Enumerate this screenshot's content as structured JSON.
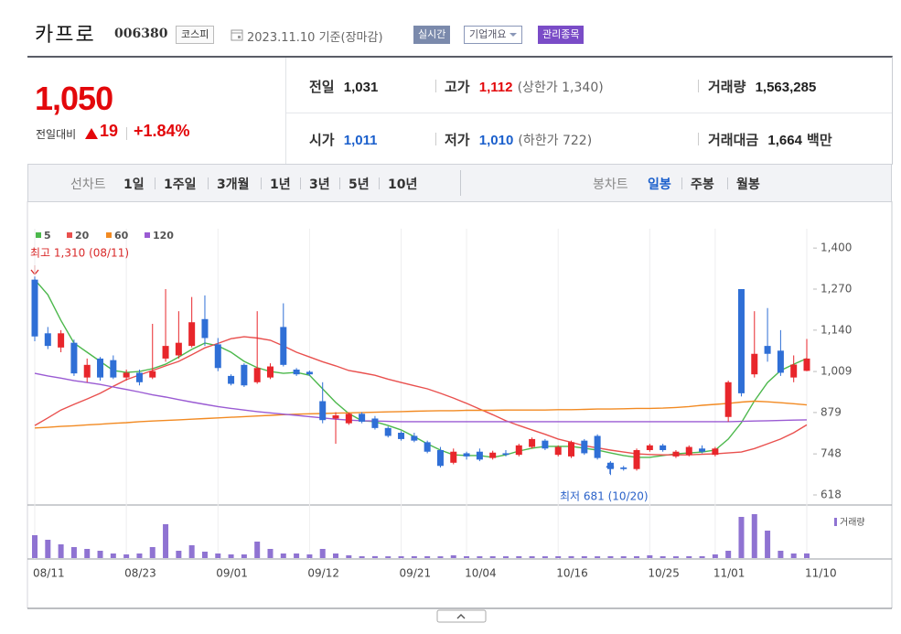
{
  "header": {
    "name": "카프로",
    "code": "006380",
    "market": "코스피",
    "date": "2023.11.10",
    "basis": "기준(장마감)",
    "buttons": [
      "실시간",
      "기업개요",
      "관리종목"
    ]
  },
  "quote": {
    "price": "1,050",
    "change_label": "전일대비",
    "change": "19",
    "change_pct": "+1.84%",
    "rows": [
      [
        {
          "label": "전일",
          "value": "1,031"
        },
        {
          "label": "고가",
          "value": "1,112",
          "note": "(상한가 1,340)"
        },
        {
          "label": "거래량",
          "value": "1,563,285"
        }
      ],
      [
        {
          "label": "시가",
          "value": "1,011"
        },
        {
          "label": "저가",
          "value": "1,010",
          "note": "(하한가 722)"
        },
        {
          "label": "거래대금",
          "value": "1,664",
          "unit": "백만"
        }
      ]
    ]
  },
  "tabs": {
    "line_label": "선차트",
    "line": [
      "1일",
      "1주일",
      "3개월",
      "1년",
      "3년",
      "5년",
      "10년"
    ],
    "candle_label": "봉차트",
    "candle": [
      "일봉",
      "주봉",
      "월봉"
    ]
  },
  "chart_data": {
    "type": "candlestick",
    "categories": [
      "08/11",
      null,
      null,
      null,
      null,
      null,
      null,
      "08/23",
      null,
      null,
      null,
      null,
      null,
      null,
      "09/01",
      null,
      null,
      null,
      null,
      null,
      null,
      "09/12",
      null,
      null,
      null,
      null,
      null,
      null,
      "09/21",
      null,
      null,
      null,
      null,
      "10/04",
      null,
      null,
      null,
      null,
      null,
      null,
      "10/16",
      null,
      null,
      null,
      null,
      null,
      null,
      "10/25",
      null,
      null,
      null,
      null,
      "11/01",
      null,
      null,
      null,
      null,
      null,
      null,
      "11/10"
    ],
    "open": [
      1300,
      1130,
      1085,
      1100,
      990,
      1050,
      1045,
      990,
      1005,
      990,
      1050,
      1060,
      1090,
      1175,
      1095,
      995,
      1030,
      975,
      990,
      1150,
      1015,
      1008,
      915,
      860,
      845,
      875,
      860,
      830,
      815,
      805,
      785,
      760,
      720,
      750,
      755,
      735,
      750,
      745,
      770,
      790,
      745,
      740,
      790,
      805,
      720,
      705,
      700,
      760,
      775,
      740,
      745,
      765,
      745,
      865,
      1270,
      1000,
      1090,
      1075,
      990,
      1011
    ],
    "high": [
      1310,
      1150,
      1140,
      1110,
      1050,
      1055,
      1060,
      1015,
      1015,
      1160,
      1270,
      1200,
      1245,
      1250,
      1115,
      1000,
      1035,
      1200,
      1035,
      1225,
      1020,
      1012,
      975,
      880,
      880,
      880,
      868,
      835,
      820,
      815,
      790,
      770,
      765,
      755,
      765,
      758,
      760,
      780,
      800,
      795,
      775,
      790,
      795,
      810,
      725,
      710,
      765,
      780,
      780,
      760,
      775,
      775,
      770,
      980,
      1270,
      1200,
      1210,
      1140,
      1060,
      1112
    ],
    "low": [
      1105,
      1080,
      1070,
      995,
      975,
      980,
      985,
      980,
      965,
      985,
      1040,
      1050,
      1085,
      1090,
      1010,
      965,
      960,
      970,
      985,
      1025,
      995,
      995,
      845,
      780,
      840,
      845,
      825,
      800,
      790,
      785,
      750,
      705,
      715,
      730,
      725,
      730,
      740,
      740,
      765,
      760,
      740,
      735,
      745,
      730,
      681,
      695,
      695,
      755,
      755,
      735,
      740,
      750,
      740,
      850,
      930,
      990,
      1040,
      995,
      975,
      1010
    ],
    "close": [
      1120,
      1090,
      1130,
      1003,
      1030,
      990,
      990,
      1005,
      975,
      1010,
      1090,
      1100,
      1165,
      1115,
      1020,
      970,
      965,
      1020,
      1025,
      1030,
      1000,
      1000,
      855,
      870,
      875,
      850,
      830,
      805,
      795,
      790,
      755,
      710,
      755,
      740,
      730,
      752,
      745,
      775,
      795,
      765,
      770,
      785,
      750,
      735,
      700,
      700,
      760,
      775,
      760,
      755,
      770,
      755,
      765,
      975,
      940,
      1065,
      1065,
      1005,
      1031,
      1050
    ],
    "up_color": "#e8262b",
    "down_color": "#2f6fd6",
    "volume_name": "거래량",
    "volume_color": "#8f73d2",
    "volume": [
      7750000,
      6200000,
      4650000,
      3720000,
      3100000,
      2480000,
      1550000,
      1240000,
      1550000,
      3720000,
      11470000,
      2480000,
      4340000,
      2170000,
      1550000,
      1240000,
      1240000,
      5580000,
      3100000,
      1550000,
      1550000,
      1240000,
      3100000,
      1550000,
      930000,
      620000,
      650000,
      600000,
      620000,
      640000,
      620000,
      600000,
      930000,
      620000,
      610000,
      620000,
      600000,
      640000,
      620000,
      600000,
      620000,
      650000,
      620000,
      600000,
      640000,
      610000,
      620000,
      930000,
      620000,
      600000,
      620000,
      640000,
      1240000,
      2480000,
      13950000,
      14880000,
      9300000,
      2480000,
      1550000,
      1563285
    ],
    "moving_averages": [
      {
        "name": "5",
        "color": "#4cb84c",
        "values": [
          1300,
          1252,
          1171,
          1099,
          1070,
          1041,
          1012,
          1006,
          1009,
          1018,
          1032,
          1055,
          1079,
          1099,
          1090,
          1070,
          1041,
          1021,
          1009,
          1003,
          1006,
          997,
          954,
          911,
          876,
          853,
          850,
          838,
          824,
          803,
          780,
          760,
          745,
          743,
          743,
          737,
          745,
          757,
          766,
          772,
          772,
          772,
          766,
          760,
          751,
          743,
          737,
          737,
          743,
          748,
          751,
          754,
          760,
          795,
          847,
          916,
          974,
          1012,
          1032,
          1050
        ]
      },
      {
        "name": "20",
        "color": "#e9504e",
        "values": [
          838,
          862,
          887,
          905,
          922,
          940,
          962,
          983,
          998,
          1012,
          1027,
          1041,
          1062,
          1084,
          1098,
          1113,
          1119,
          1115,
          1108,
          1090,
          1070,
          1055,
          1040,
          1027,
          1012,
          1005,
          997,
          985,
          974,
          964,
          954,
          940,
          925,
          908,
          890,
          872,
          853,
          838,
          824,
          810,
          795,
          785,
          774,
          767,
          760,
          754,
          748,
          746,
          745,
          745,
          745,
          747,
          748,
          751,
          754,
          765,
          780,
          795,
          815,
          840
        ]
      },
      {
        "name": "60",
        "color": "#f28a22",
        "values": [
          830,
          832,
          835,
          837,
          840,
          842,
          845,
          847,
          850,
          852,
          854,
          856,
          858,
          860,
          862,
          864,
          866,
          868,
          870,
          872,
          874,
          875,
          876,
          877,
          878,
          879,
          880,
          881,
          882,
          883,
          884,
          885,
          885,
          886,
          886,
          886,
          887,
          887,
          887,
          887,
          888,
          888,
          889,
          890,
          890,
          891,
          892,
          892,
          893,
          895,
          898,
          902,
          905,
          908,
          912,
          915,
          913,
          910,
          907,
          903
        ]
      },
      {
        "name": "120",
        "color": "#9a5bd3",
        "values": [
          1003,
          995,
          988,
          980,
          974,
          968,
          960,
          952,
          944,
          935,
          928,
          920,
          912,
          905,
          898,
          892,
          887,
          882,
          878,
          874,
          870,
          866,
          862,
          858,
          855,
          853,
          852,
          851,
          850,
          850,
          850,
          850,
          850,
          850,
          850,
          850,
          850,
          850,
          850,
          850,
          850,
          850,
          850,
          850,
          850,
          850,
          850,
          850,
          850,
          850,
          850,
          850,
          850,
          850,
          851,
          852,
          853,
          854,
          855,
          856
        ]
      }
    ],
    "annotations": [
      {
        "text": "최고 1,310 (08/11)",
        "color": "#d92a2a"
      },
      {
        "text": "최저 681 (10/20)",
        "color": "#2a62c9"
      }
    ],
    "ylim": [
      589,
      1441
    ],
    "yticks": [
      {
        "value": 1400,
        "label": "1,400"
      },
      {
        "value": 1270,
        "label": "1,270"
      },
      {
        "value": 1140,
        "label": "1,140"
      },
      {
        "value": 1009,
        "label": "1,009"
      },
      {
        "value": 879,
        "label": "879"
      },
      {
        "value": 748,
        "label": "748"
      },
      {
        "value": 618,
        "label": "618"
      }
    ],
    "grid": true
  }
}
